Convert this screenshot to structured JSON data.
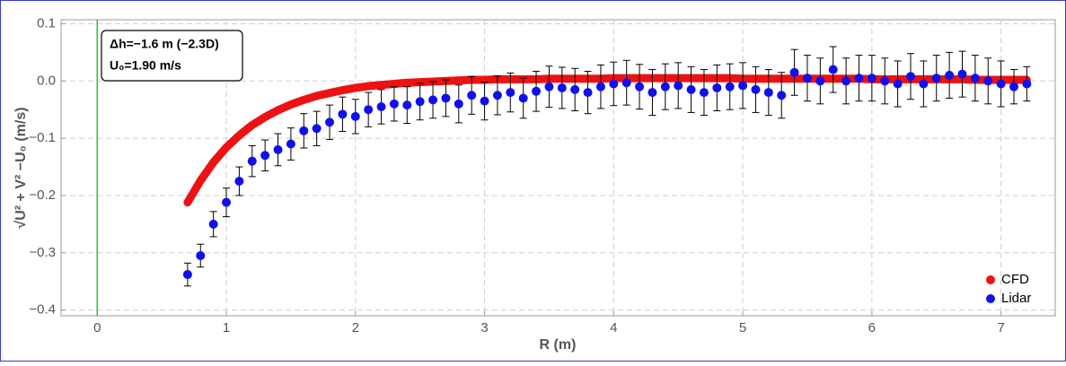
{
  "chart_data": {
    "type": "scatter",
    "xlabel": "R (m)",
    "ylabel": "√U² + V² −U₀ (m/s)",
    "annotations": [
      "Δh=−1.6 m (−2.3D)",
      "U₀=1.90 m/s"
    ],
    "xlim": [
      -0.28,
      7.42
    ],
    "ylim": [
      -0.41,
      0.107
    ],
    "xticks": [
      0,
      1,
      2,
      3,
      4,
      5,
      6,
      7
    ],
    "yticks": [
      {
        "value": 0.1,
        "label": "0.1"
      },
      {
        "value": 0,
        "label": "0.0"
      },
      {
        "value": -0.1,
        "label": "−0.1"
      },
      {
        "value": -0.2,
        "label": "−0.2"
      },
      {
        "value": -0.3,
        "label": "−0.3"
      },
      {
        "value": -0.4,
        "label": "−0.4"
      }
    ],
    "grid": true,
    "legend": "bottom-right",
    "x": [
      0.7,
      0.8,
      0.9,
      1.0,
      1.1,
      1.2,
      1.3,
      1.4,
      1.5,
      1.6,
      1.7,
      1.8,
      1.9,
      2.0,
      2.1,
      2.2,
      2.3,
      2.4,
      2.5,
      2.6,
      2.7,
      2.8,
      2.9,
      3.0,
      3.1,
      3.2,
      3.3,
      3.4,
      3.5,
      3.6,
      3.7,
      3.8,
      3.9,
      4.0,
      4.1,
      4.2,
      4.3,
      4.4,
      4.5,
      4.6,
      4.7,
      4.8,
      4.9,
      5.0,
      5.1,
      5.2,
      5.3,
      5.4,
      5.5,
      5.6,
      5.7,
      5.8,
      5.9,
      6.0,
      6.1,
      6.2,
      6.3,
      6.4,
      6.5,
      6.6,
      6.7,
      6.8,
      6.9,
      7.0,
      7.1,
      7.2
    ],
    "series": [
      {
        "name": "CFD",
        "color": "#ee1111",
        "values": [
          -0.212,
          -0.174,
          -0.142,
          -0.116,
          -0.095,
          -0.077,
          -0.063,
          -0.051,
          -0.041,
          -0.033,
          -0.026,
          -0.021,
          -0.016,
          -0.012,
          -0.009,
          -0.007,
          -0.005,
          -0.003,
          -0.002,
          -0.001,
          0.0,
          0.001,
          0.002,
          0.002,
          0.003,
          0.003,
          0.003,
          0.003,
          0.004,
          0.004,
          0.004,
          0.004,
          0.004,
          0.005,
          0.005,
          0.005,
          0.005,
          0.005,
          0.005,
          0.005,
          0.005,
          0.005,
          0.005,
          0.004,
          0.004,
          0.004,
          0.004,
          0.004,
          0.004,
          0.004,
          0.004,
          0.004,
          0.004,
          0.003,
          0.003,
          0.003,
          0.003,
          0.003,
          0.003,
          0.003,
          0.003,
          0.002,
          0.002,
          0.002,
          0.002,
          0.002
        ]
      },
      {
        "name": "Lidar",
        "color": "#1010ee",
        "values": [
          -0.338,
          -0.305,
          -0.25,
          -0.212,
          -0.175,
          -0.14,
          -0.13,
          -0.12,
          -0.11,
          -0.087,
          -0.083,
          -0.072,
          -0.058,
          -0.062,
          -0.05,
          -0.045,
          -0.04,
          -0.042,
          -0.036,
          -0.033,
          -0.03,
          -0.04,
          -0.025,
          -0.035,
          -0.025,
          -0.02,
          -0.03,
          -0.018,
          -0.01,
          -0.012,
          -0.015,
          -0.02,
          -0.01,
          -0.005,
          -0.003,
          -0.01,
          -0.02,
          -0.01,
          -0.008,
          -0.015,
          -0.02,
          -0.012,
          -0.01,
          -0.008,
          -0.015,
          -0.02,
          -0.025,
          0.015,
          0.005,
          0.0,
          0.02,
          0.0,
          0.005,
          0.005,
          0.0,
          -0.005,
          0.008,
          -0.005,
          0.005,
          0.01,
          0.012,
          0.005,
          0.0,
          -0.005,
          -0.01,
          -0.005
        ],
        "errors": [
          0.02,
          0.02,
          0.022,
          0.025,
          0.025,
          0.027,
          0.027,
          0.028,
          0.028,
          0.03,
          0.03,
          0.03,
          0.03,
          0.03,
          0.03,
          0.03,
          0.03,
          0.032,
          0.032,
          0.032,
          0.032,
          0.033,
          0.033,
          0.033,
          0.034,
          0.034,
          0.035,
          0.035,
          0.036,
          0.036,
          0.037,
          0.037,
          0.038,
          0.038,
          0.039,
          0.039,
          0.04,
          0.04,
          0.04,
          0.04,
          0.04,
          0.04,
          0.04,
          0.04,
          0.04,
          0.04,
          0.04,
          0.04,
          0.04,
          0.04,
          0.04,
          0.04,
          0.04,
          0.04,
          0.04,
          0.04,
          0.04,
          0.04,
          0.04,
          0.04,
          0.04,
          0.04,
          0.04,
          0.04,
          0.03,
          0.03
        ]
      }
    ]
  }
}
